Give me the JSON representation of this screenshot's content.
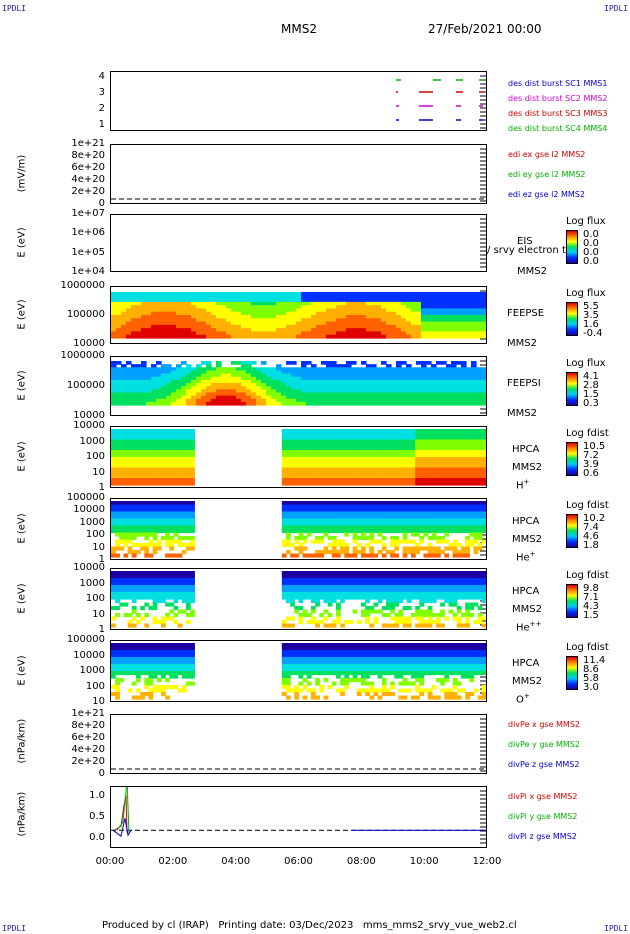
{
  "corner_tag": "IPDLI",
  "header": {
    "spacecraft": "MMS2",
    "date": "27/Feb/2021 00:00"
  },
  "footer": "Produced by cl (IRAP)   Printing date: 03/Dec/2023   mms_mms2_srvy_vue_web2.cl",
  "x_ticks": [
    "00:00",
    "02:00",
    "04:00",
    "06:00",
    "08:00",
    "10:00",
    "12:00"
  ],
  "panels": [
    {
      "id": "dist",
      "ylabel": "",
      "yticks": [
        "4",
        "3",
        "2",
        "1"
      ],
      "legend": [
        {
          "text": "des dist burst SC1 MMS1",
          "color": "#0000c8"
        },
        {
          "text": "des dist burst SC2 MMS2",
          "color": "#d000d0"
        },
        {
          "text": "des dist burst SC3 MMS3",
          "color": "#d00000"
        },
        {
          "text": "des dist burst SC4 MMS4",
          "color": "#00b000"
        }
      ]
    },
    {
      "id": "edi",
      "ylabel": "(mV/m)",
      "yticks": [
        "1e+21",
        "8e+20",
        "6e+20",
        "4e+20",
        "2e+20",
        "0"
      ],
      "legend": [
        {
          "text": "edi ex gse l2 MMS2",
          "color": "#d00000"
        },
        {
          "text": "edi ey gse l2 MMS2",
          "color": "#00b000"
        },
        {
          "text": "edi ez gse l2 MMS2",
          "color": "#0000c8"
        }
      ]
    },
    {
      "id": "eis",
      "ylabel": "E (eV)",
      "yticks": [
        "1e+07",
        "1e+06",
        "1e+05",
        "1e+04"
      ],
      "side": [
        "EIS",
        "MMS2"
      ],
      "overlay": "Extof proton / phxtof proton / srvy electron to",
      "cb": {
        "title": "Log flux",
        "values": [
          "0.0",
          "0.0",
          "0.0",
          "0.0"
        ]
      }
    },
    {
      "id": "feepse",
      "ylabel": "E (eV)",
      "yticks": [
        "1000000",
        "100000",
        "10000"
      ],
      "side": [
        "FEEPSE",
        "MMS2"
      ],
      "cb": {
        "title": "Log flux",
        "values": [
          "5.5",
          "3.5",
          "1.6",
          "-0.4"
        ]
      }
    },
    {
      "id": "feepsi",
      "ylabel": "E (eV)",
      "yticks": [
        "1000000",
        "100000",
        "10000"
      ],
      "side": [
        "FEEPSI",
        "MMS2"
      ],
      "cb": {
        "title": "Log flux",
        "values": [
          "4.1",
          "2.8",
          "1.5",
          "0.3"
        ]
      }
    },
    {
      "id": "hpca_h",
      "ylabel": "E (eV)",
      "yticks": [
        "10000",
        "1000",
        "100",
        "10",
        "1"
      ],
      "side": [
        "HPCA",
        "MMS2",
        "H+"
      ],
      "cb": {
        "title": "Log fdist",
        "values": [
          "10.5",
          "7.2",
          "3.9",
          "0.6"
        ]
      }
    },
    {
      "id": "hpca_he1",
      "ylabel": "E (eV)",
      "yticks": [
        "100000",
        "10000",
        "1000",
        "100",
        "10",
        "1"
      ],
      "side": [
        "HPCA",
        "MMS2",
        "He+"
      ],
      "cb": {
        "title": "Log fdist",
        "values": [
          "10.2",
          "7.4",
          "4.6",
          "1.8"
        ]
      }
    },
    {
      "id": "hpca_he2",
      "ylabel": "E (eV)",
      "yticks": [
        "10000",
        "1000",
        "100",
        "10",
        "1"
      ],
      "side": [
        "HPCA",
        "MMS2",
        "He++"
      ],
      "cb": {
        "title": "Log fdist",
        "values": [
          "9.8",
          "7.1",
          "4.3",
          "1.5"
        ]
      }
    },
    {
      "id": "hpca_o",
      "ylabel": "E (eV)",
      "yticks": [
        "100000",
        "10000",
        "1000",
        "100",
        "10"
      ],
      "side": [
        "HPCA",
        "MMS2",
        "O+"
      ],
      "cb": {
        "title": "Log fdist",
        "values": [
          "11.4",
          "8.6",
          "5.8",
          "3.0"
        ]
      }
    },
    {
      "id": "divpe",
      "ylabel": "(nPa/km)",
      "yticks": [
        "1e+21",
        "8e+20",
        "6e+20",
        "4e+20",
        "2e+20",
        "0"
      ],
      "legend": [
        {
          "text": "divPe x gse MMS2",
          "color": "#d00000"
        },
        {
          "text": "divPe y gse MMS2",
          "color": "#00b000"
        },
        {
          "text": "divPe z gse MMS2",
          "color": "#0000c8"
        }
      ]
    },
    {
      "id": "divpi",
      "ylabel": "(nPa/km)",
      "yticks": [
        "1.0",
        "0.5",
        "0.0"
      ],
      "legend": [
        {
          "text": "divPi x gse MMS2",
          "color": "#d00000"
        },
        {
          "text": "divPi y gse MMS2",
          "color": "#00b000"
        },
        {
          "text": "divPi z gse MMS2",
          "color": "#0000c8"
        }
      ]
    }
  ],
  "chart_data": {
    "type": "heatmap",
    "x_range": [
      "00:00",
      "12:00"
    ],
    "hpca_data_gap": [
      "02:35",
      "05:25"
    ],
    "divpi_spike": {
      "time": "00:40",
      "x_max": 1.05,
      "y_min": -0.1
    }
  }
}
